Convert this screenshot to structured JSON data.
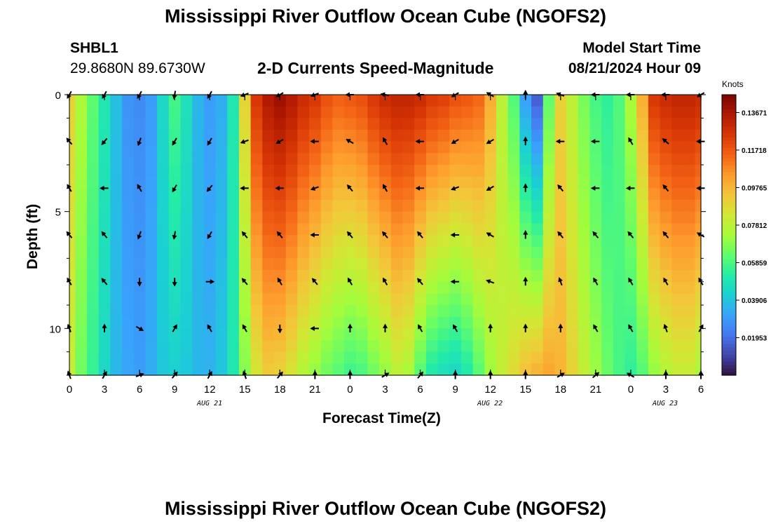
{
  "page": {
    "title_top": "Mississippi River Outflow Ocean Cube (NGOFS2)",
    "title_bottom": "Mississippi River Outflow Ocean Cube (NGOFS2)"
  },
  "header": {
    "station_id": "SHBL1",
    "station_coords": "29.8680N  89.6730W",
    "plot_title": "2-D Currents Speed-Magnitude",
    "model_start_label": "Model Start Time",
    "model_start_value": "08/21/2024 Hour 09"
  },
  "colors": {
    "colormap": [
      "#30123b",
      "#4145ab",
      "#4675ed",
      "#39a2fc",
      "#1bcfd4",
      "#24eca6",
      "#61fc6c",
      "#a4fc3b",
      "#d1e834",
      "#f3c63a",
      "#fe9b2d",
      "#f36315",
      "#d93806",
      "#b11901",
      "#7a0403"
    ],
    "axis": "#000000",
    "arrow": "#000000"
  },
  "chart_data": {
    "type": "heatmap",
    "title": "2-D Currents Speed-Magnitude",
    "xlabel": "Forecast Time(Z)",
    "ylabel": "Depth (ft)",
    "x_ticks": [
      0,
      3,
      6,
      9,
      12,
      15,
      18,
      21,
      24,
      27,
      30,
      33,
      36,
      39,
      42,
      45,
      48,
      51,
      54
    ],
    "x_tick_labels": [
      "0",
      "3",
      "6",
      "9",
      "12",
      "15",
      "18",
      "21",
      "0",
      "3",
      "6",
      "9",
      "12",
      "15",
      "18",
      "21",
      "0",
      "3",
      "6"
    ],
    "xlim": [
      0,
      54
    ],
    "y_ticks": [
      0,
      5,
      10
    ],
    "y_tick_labels": [
      "0",
      "5",
      "10"
    ],
    "ylim": [
      12,
      0
    ],
    "date_labels": [
      {
        "hour": 12,
        "text": "AUG 21"
      },
      {
        "hour": 36,
        "text": "AUG 22"
      },
      {
        "hour": 51,
        "text": "AUG 23"
      }
    ],
    "colorbar": {
      "label": "Knots",
      "min": 0.0,
      "max": 0.146,
      "tick_values": [
        0.01953,
        0.03906,
        0.05859,
        0.07812,
        0.09765,
        0.11718,
        0.13671
      ],
      "tick_labels": [
        "0.01953",
        "0.03906",
        "0.05859",
        "0.07812",
        "0.09765",
        "0.11718",
        "0.13671"
      ]
    },
    "depths_ft": [
      0,
      2,
      4,
      6,
      8,
      10,
      12
    ],
    "speed_profile": {
      "hours": [
        0,
        1,
        2,
        3,
        4,
        5,
        6,
        7,
        8,
        9,
        10,
        11,
        12,
        13,
        14,
        15,
        16,
        17,
        18,
        19,
        20,
        21,
        22,
        23,
        24,
        25,
        26,
        27,
        28,
        29,
        30,
        31,
        32,
        33,
        34,
        35,
        36,
        37,
        38,
        39,
        40,
        41,
        42,
        43,
        44,
        45,
        46,
        47,
        48,
        49,
        50,
        51,
        52,
        53,
        54
      ],
      "surface": [
        0.09,
        0.075,
        0.062,
        0.05,
        0.038,
        0.028,
        0.026,
        0.03,
        0.045,
        0.058,
        0.048,
        0.036,
        0.03,
        0.034,
        0.05,
        0.09,
        0.126,
        0.136,
        0.14,
        0.136,
        0.13,
        0.126,
        0.12,
        0.116,
        0.118,
        0.12,
        0.126,
        0.13,
        0.132,
        0.132,
        0.13,
        0.126,
        0.124,
        0.12,
        0.118,
        0.115,
        0.1,
        0.078,
        0.06,
        0.03,
        0.015,
        0.062,
        0.09,
        0.078,
        0.066,
        0.058,
        0.054,
        0.06,
        0.075,
        0.1,
        0.126,
        0.13,
        0.132,
        0.132,
        0.13
      ],
      "bottom": [
        0.08,
        0.065,
        0.055,
        0.045,
        0.036,
        0.032,
        0.03,
        0.034,
        0.04,
        0.042,
        0.04,
        0.036,
        0.035,
        0.04,
        0.05,
        0.068,
        0.084,
        0.092,
        0.09,
        0.084,
        0.076,
        0.07,
        0.064,
        0.06,
        0.056,
        0.058,
        0.064,
        0.07,
        0.078,
        0.074,
        0.06,
        0.05,
        0.046,
        0.044,
        0.05,
        0.06,
        0.072,
        0.08,
        0.088,
        0.096,
        0.1,
        0.102,
        0.098,
        0.09,
        0.08,
        0.072,
        0.064,
        0.058,
        0.054,
        0.06,
        0.07,
        0.076,
        0.08,
        0.08,
        0.074
      ]
    },
    "vector_hours": [
      0,
      3,
      6,
      9,
      12,
      15,
      18,
      21,
      24,
      27,
      30,
      33,
      36,
      39,
      42,
      45,
      48,
      51,
      54
    ],
    "vector_depths_ft": [
      0,
      2,
      4,
      6,
      8,
      10,
      12
    ],
    "direction_deg_north_clockwise": [
      [
        210,
        210,
        210,
        190,
        210,
        250,
        240,
        250,
        270,
        280,
        270,
        240,
        300,
        0,
        290,
        270,
        270,
        270,
        240
      ],
      [
        320,
        220,
        200,
        210,
        210,
        250,
        240,
        270,
        300,
        330,
        270,
        240,
        240,
        0,
        270,
        270,
        330,
        310,
        270
      ],
      [
        330,
        270,
        330,
        210,
        220,
        270,
        270,
        250,
        320,
        330,
        270,
        250,
        240,
        0,
        320,
        270,
        270,
        320,
        270
      ],
      [
        320,
        320,
        200,
        190,
        210,
        320,
        320,
        270,
        320,
        320,
        320,
        270,
        300,
        0,
        320,
        320,
        320,
        320,
        300
      ],
      [
        330,
        320,
        180,
        180,
        90,
        320,
        330,
        320,
        330,
        330,
        320,
        270,
        290,
        0,
        340,
        330,
        330,
        330,
        330
      ],
      [
        340,
        0,
        120,
        30,
        330,
        330,
        180,
        270,
        0,
        0,
        330,
        330,
        0,
        0,
        0,
        330,
        330,
        340,
        30
      ],
      [
        340,
        30,
        70,
        40,
        30,
        340,
        40,
        0,
        0,
        60,
        40,
        0,
        0,
        0,
        60,
        50,
        300,
        0,
        0
      ]
    ]
  }
}
